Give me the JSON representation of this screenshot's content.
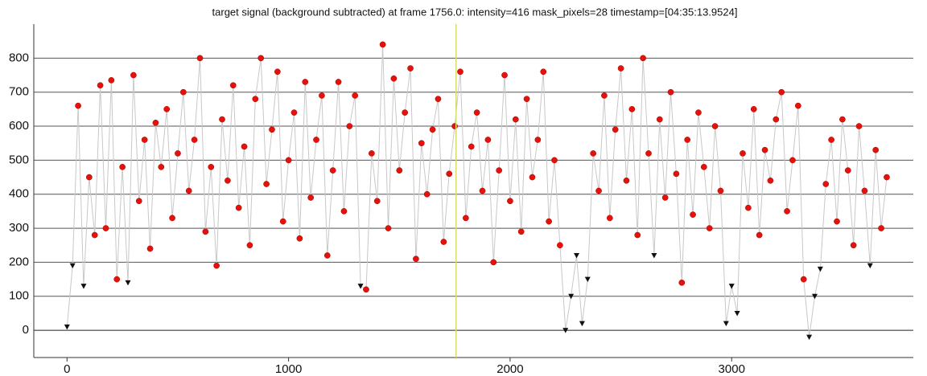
{
  "chart_data": {
    "type": "scatter",
    "title": "target signal (background subtracted) at frame 1756.0: intensity=416 mask_pixels=28 timestamp=[04:35:13.9524]",
    "xlim": [
      -150,
      3820
    ],
    "ylim": [
      -80,
      900
    ],
    "xticks": [
      0,
      1000,
      2000,
      3000
    ],
    "yticks": [
      0,
      100,
      200,
      300,
      400,
      500,
      600,
      700,
      800
    ],
    "grid": true,
    "current_frame": 1756,
    "current_frame_color": "#d8dc6a",
    "line_color": "#c8c8c8",
    "marker_colors": {
      "o": "#e3120b",
      "v": "#111111"
    },
    "series": [
      {
        "x": [
          0,
          25,
          50,
          75,
          100,
          125,
          150,
          175,
          200,
          225,
          250,
          275,
          300,
          325,
          350,
          375,
          400,
          425,
          450,
          475,
          500,
          525,
          550,
          575,
          600,
          625,
          650,
          675,
          700,
          725,
          750,
          775,
          800,
          825,
          850,
          875,
          900,
          925,
          950,
          975,
          1000,
          1025,
          1050,
          1075,
          1100,
          1125,
          1150,
          1175,
          1200,
          1225,
          1250,
          1275,
          1300,
          1325,
          1350,
          1375,
          1400,
          1425,
          1450,
          1475,
          1500,
          1525,
          1550,
          1575,
          1600,
          1625,
          1650,
          1675,
          1700,
          1725,
          1750,
          1775,
          1800,
          1825,
          1850,
          1875,
          1900,
          1925,
          1950,
          1975,
          2000,
          2025,
          2050,
          2075,
          2100,
          2125,
          2150,
          2175,
          2200,
          2225,
          2250,
          2275,
          2300,
          2325,
          2350,
          2375,
          2400,
          2425,
          2450,
          2475,
          2500,
          2525,
          2550,
          2575,
          2600,
          2625,
          2650,
          2675,
          2700,
          2725,
          2750,
          2775,
          2800,
          2825,
          2850,
          2875,
          2900,
          2925,
          2950,
          2975,
          3000,
          3025,
          3050,
          3075,
          3100,
          3125,
          3150,
          3175,
          3200,
          3225,
          3250,
          3275,
          3300,
          3325,
          3350,
          3375,
          3400,
          3425,
          3450,
          3475,
          3500,
          3525,
          3550,
          3575,
          3600,
          3625,
          3650,
          3675,
          3700
        ],
        "values": [
          10,
          190,
          660,
          130,
          450,
          280,
          720,
          300,
          735,
          150,
          480,
          140,
          750,
          380,
          560,
          240,
          610,
          480,
          650,
          330,
          520,
          700,
          410,
          560,
          800,
          290,
          480,
          190,
          620,
          440,
          720,
          360,
          540,
          250,
          680,
          800,
          430,
          590,
          760,
          320,
          500,
          640,
          270,
          730,
          390,
          560,
          690,
          220,
          470,
          730,
          350,
          600,
          690,
          130,
          120,
          520,
          380,
          840,
          300,
          740,
          470,
          640,
          770,
          210,
          550,
          400,
          590,
          680,
          260,
          460,
          600,
          760,
          330,
          540,
          640,
          410,
          560,
          200,
          470,
          750,
          380,
          620,
          290,
          680,
          450,
          560,
          760,
          320,
          500,
          250,
          0,
          100,
          220,
          20,
          150,
          520,
          410,
          690,
          330,
          590,
          770,
          440,
          650,
          280,
          800,
          520,
          220,
          620,
          390,
          700,
          460,
          140,
          560,
          340,
          640,
          480,
          300,
          600,
          410,
          20,
          130,
          50,
          520,
          360,
          650,
          280,
          530,
          440,
          620,
          700,
          350,
          500,
          660,
          150,
          -20,
          100,
          180,
          430,
          560,
          320,
          620,
          470,
          250,
          600,
          410,
          190,
          530,
          300,
          450
        ],
        "markers": [
          "v",
          "v",
          "o",
          "v",
          "o",
          "o",
          "o",
          "o",
          "o",
          "o",
          "o",
          "v",
          "o",
          "o",
          "o",
          "o",
          "o",
          "o",
          "o",
          "o",
          "o",
          "o",
          "o",
          "o",
          "o",
          "o",
          "o",
          "o",
          "o",
          "o",
          "o",
          "o",
          "o",
          "o",
          "o",
          "o",
          "o",
          "o",
          "o",
          "o",
          "o",
          "o",
          "o",
          "o",
          "o",
          "o",
          "o",
          "o",
          "o",
          "o",
          "o",
          "o",
          "o",
          "v",
          "o",
          "o",
          "o",
          "o",
          "o",
          "o",
          "o",
          "o",
          "o",
          "o",
          "o",
          "o",
          "o",
          "o",
          "o",
          "o",
          "o",
          "o",
          "o",
          "o",
          "o",
          "o",
          "o",
          "o",
          "o",
          "o",
          "o",
          "o",
          "o",
          "o",
          "o",
          "o",
          "o",
          "o",
          "o",
          "o",
          "v",
          "v",
          "v",
          "v",
          "v",
          "o",
          "o",
          "o",
          "o",
          "o",
          "o",
          "o",
          "o",
          "o",
          "o",
          "o",
          "v",
          "o",
          "o",
          "o",
          "o",
          "o",
          "o",
          "o",
          "o",
          "o",
          "o",
          "o",
          "o",
          "v",
          "v",
          "v",
          "o",
          "o",
          "o",
          "o",
          "o",
          "o",
          "o",
          "o",
          "o",
          "o",
          "o",
          "o",
          "v",
          "v",
          "v",
          "o",
          "o",
          "o",
          "o",
          "o",
          "o",
          "o",
          "o",
          "v",
          "o",
          "o",
          "o"
        ]
      }
    ]
  }
}
